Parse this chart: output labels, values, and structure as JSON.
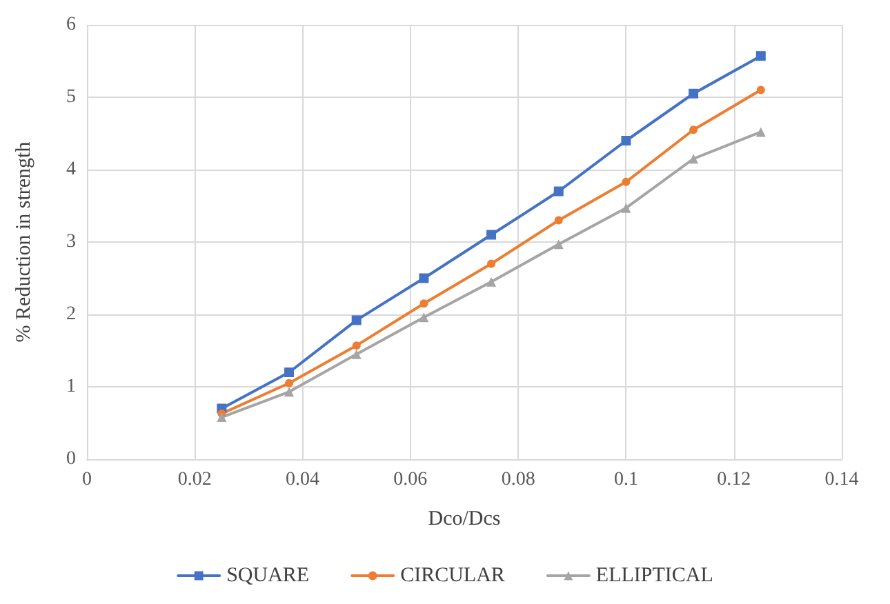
{
  "chart_data": {
    "type": "line",
    "xlabel": "Dco/Dcs",
    "ylabel": "% Reduction in strength",
    "x": [
      0.025,
      0.0375,
      0.05,
      0.0625,
      0.075,
      0.0875,
      0.1,
      0.1125,
      0.125
    ],
    "series": [
      {
        "name": "SQUARE",
        "color": "#4472c4",
        "marker": "square",
        "values": [
          0.7,
          1.2,
          1.92,
          2.5,
          3.1,
          3.7,
          4.4,
          5.05,
          5.57
        ]
      },
      {
        "name": "CIRCULAR",
        "color": "#ed7d31",
        "marker": "circle",
        "values": [
          0.63,
          1.05,
          1.57,
          2.15,
          2.7,
          3.3,
          3.83,
          4.55,
          5.1
        ]
      },
      {
        "name": "ELLIPTICAL",
        "color": "#a5a5a5",
        "marker": "triangle",
        "values": [
          0.58,
          0.93,
          1.45,
          1.96,
          2.45,
          2.97,
          3.47,
          4.15,
          4.52
        ]
      }
    ],
    "xlim": [
      0,
      0.14
    ],
    "xticks": [
      0,
      0.02,
      0.04,
      0.06,
      0.08,
      0.1,
      0.12,
      0.14
    ],
    "ylim": [
      0,
      6
    ],
    "yticks": [
      0,
      1,
      2,
      3,
      4,
      5,
      6
    ],
    "grid": true,
    "legend": "bottom",
    "line_style": "solid"
  }
}
